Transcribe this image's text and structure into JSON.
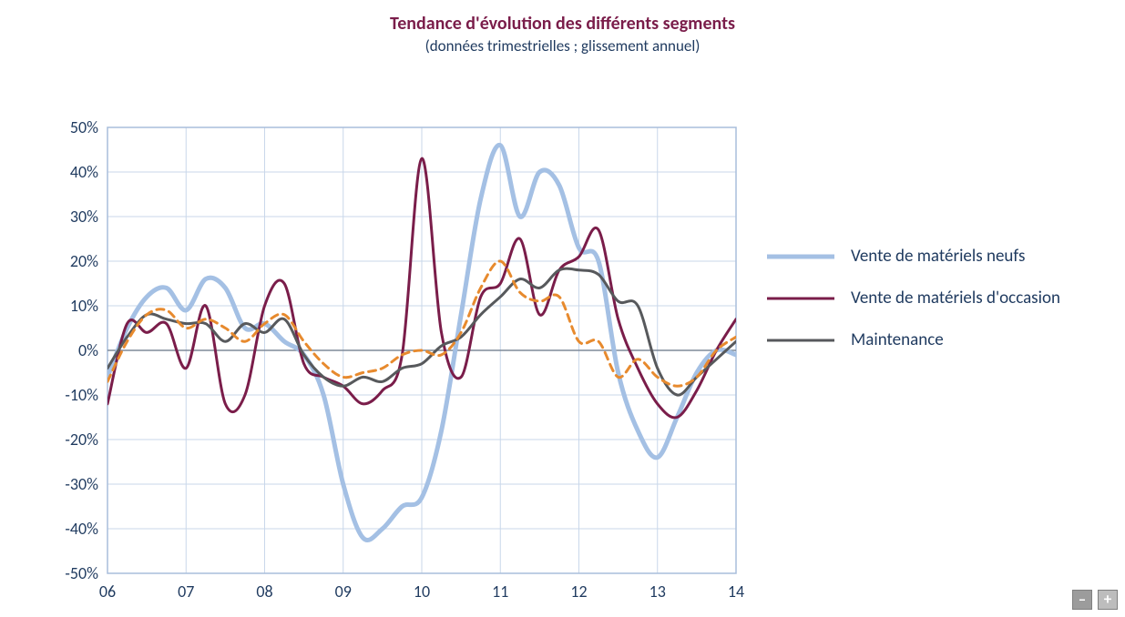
{
  "title": {
    "text": "Tendance d'évolution des différents segments",
    "color": "#7a1d4a",
    "fontsize_pt": 20,
    "weight": "bold"
  },
  "subtitle": {
    "text": "(données trimestrielles ; glissement annuel)",
    "color": "#1f3a5f",
    "fontsize_pt": 17,
    "weight": "normal"
  },
  "chart": {
    "type": "line",
    "background_color": "#ffffff",
    "plot_border_color": "#a9bedb",
    "grid_color": "#c9d7ea",
    "axis_line_color": "#7f8a99",
    "tick_label_color": "#1f3a5f",
    "tick_label_fontsize_pt": 18,
    "x": {
      "min": 6.0,
      "max": 14.0,
      "tick_positions": [
        6,
        7,
        8,
        9,
        10,
        11,
        12,
        13,
        14
      ],
      "tick_labels": [
        "06",
        "07",
        "08",
        "09",
        "10",
        "11",
        "12",
        "13",
        "14"
      ]
    },
    "y": {
      "min": -50,
      "max": 50,
      "tick_step": 10,
      "tick_positions": [
        -50,
        -40,
        -30,
        -20,
        -10,
        0,
        10,
        20,
        30,
        40,
        50
      ],
      "tick_labels": [
        "-50%",
        "-40%",
        "-30%",
        "-20%",
        "-10%",
        "0%",
        "10%",
        "20%",
        "30%",
        "40%",
        "50%"
      ]
    },
    "series": [
      {
        "id": "neufs",
        "label": "Vente de matériels neufs",
        "color": "#a4c0e4",
        "line_width": 5,
        "dash": "solid",
        "x": [
          6.0,
          6.25,
          6.5,
          6.75,
          7.0,
          7.25,
          7.5,
          7.75,
          8.0,
          8.25,
          8.5,
          8.75,
          9.0,
          9.25,
          9.5,
          9.75,
          10.0,
          10.25,
          10.5,
          10.75,
          11.0,
          11.25,
          11.5,
          11.75,
          12.0,
          12.25,
          12.5,
          12.75,
          13.0,
          13.25,
          13.5,
          13.75,
          14.0
        ],
        "y": [
          -6,
          5,
          12,
          14,
          9,
          16,
          14,
          5,
          6,
          2,
          -1,
          -10,
          -30,
          -42,
          -40,
          -35,
          -33,
          -18,
          8,
          34,
          46,
          30,
          40,
          37,
          23,
          20,
          -5,
          -18,
          -24,
          -15,
          -5,
          0,
          -1
        ]
      },
      {
        "id": "occasion",
        "label": "Vente de matériels d'occasion",
        "color": "#7a1d4a",
        "line_width": 3,
        "dash": "solid",
        "x": [
          6.0,
          6.25,
          6.5,
          6.75,
          7.0,
          7.25,
          7.5,
          7.75,
          8.0,
          8.25,
          8.5,
          8.75,
          9.0,
          9.25,
          9.5,
          9.75,
          10.0,
          10.25,
          10.5,
          10.75,
          11.0,
          11.25,
          11.5,
          11.75,
          12.0,
          12.25,
          12.5,
          12.75,
          13.0,
          13.25,
          13.5,
          13.75,
          14.0
        ],
        "y": [
          -12,
          6,
          4,
          6,
          -4,
          10,
          -12,
          -10,
          10,
          15,
          -3,
          -6,
          -8,
          -12,
          -9,
          -1,
          43,
          4,
          -6,
          12,
          15,
          25,
          8,
          18,
          21,
          27,
          7,
          -4,
          -12,
          -15,
          -9,
          0,
          7
        ]
      },
      {
        "id": "maintenance",
        "label": "Maintenance",
        "color": "#57595c",
        "line_width": 3,
        "dash": "solid",
        "x": [
          6.0,
          6.25,
          6.5,
          6.75,
          7.0,
          7.25,
          7.5,
          7.75,
          8.0,
          8.25,
          8.5,
          8.75,
          9.0,
          9.25,
          9.5,
          9.75,
          10.0,
          10.25,
          10.5,
          10.75,
          11.0,
          11.25,
          11.5,
          11.75,
          12.0,
          12.25,
          12.5,
          12.75,
          13.0,
          13.25,
          13.5,
          13.75,
          14.0
        ],
        "y": [
          -4,
          3,
          8,
          7,
          6,
          6,
          2,
          6,
          4,
          7,
          -1,
          -6,
          -8,
          -6,
          -7,
          -4,
          -3,
          1,
          3,
          8,
          12,
          16,
          14,
          18,
          18,
          17,
          11,
          10,
          -4,
          -10,
          -6,
          -2,
          2
        ]
      },
      {
        "id": "dashed",
        "label": "",
        "color": "#e78a2e",
        "line_width": 3,
        "dash": "8 6",
        "x": [
          6.0,
          6.25,
          6.5,
          6.75,
          7.0,
          7.25,
          7.5,
          7.75,
          8.0,
          8.25,
          8.5,
          8.75,
          9.0,
          9.25,
          9.5,
          9.75,
          10.0,
          10.25,
          10.5,
          10.75,
          11.0,
          11.25,
          11.5,
          11.75,
          12.0,
          12.25,
          12.5,
          12.75,
          13.0,
          13.25,
          13.5,
          13.75,
          14.0
        ],
        "y": [
          -7,
          2,
          8,
          9,
          5,
          7,
          5,
          2,
          6,
          8,
          2,
          -3,
          -6,
          -5,
          -4,
          -1,
          0,
          -1,
          4,
          14,
          20,
          13,
          11,
          12,
          2,
          2,
          -6,
          -2,
          -6,
          -8,
          -6,
          0,
          3
        ]
      }
    ],
    "legend": {
      "position": "right",
      "label_color": "#1f3a5f",
      "label_fontsize_pt": 19,
      "items": [
        "neufs",
        "occasion",
        "maintenance"
      ]
    }
  },
  "controls": {
    "zoom_out_label": "–",
    "zoom_in_label": "+"
  }
}
